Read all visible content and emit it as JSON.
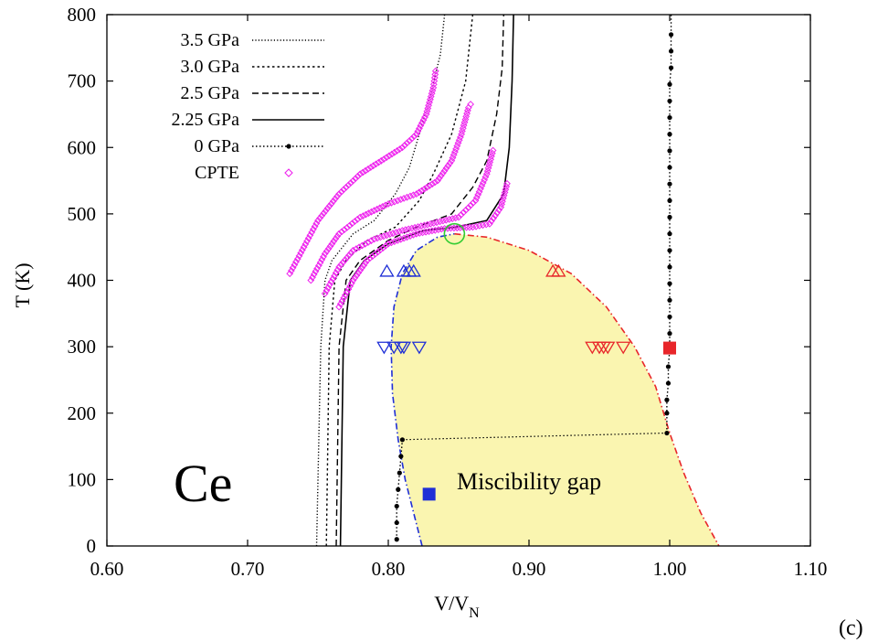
{
  "chart_data": {
    "type": "scatter",
    "element_label": "Ce",
    "panel_label": "(c)",
    "region_label": "Miscibility gap",
    "xlabel": "V/V",
    "xlabel_sub": "N",
    "ylabel": "T (K)",
    "xlim": [
      0.6,
      1.1
    ],
    "ylim": [
      0,
      800
    ],
    "xticks": [
      0.6,
      0.7,
      0.8,
      0.9,
      1.0,
      1.1
    ],
    "xtick_labels": [
      "0.60",
      "0.70",
      "0.80",
      "0.90",
      "1.00",
      "1.10"
    ],
    "yticks": [
      0,
      100,
      200,
      300,
      400,
      500,
      600,
      700,
      800
    ],
    "ytick_labels": [
      "0",
      "100",
      "200",
      "300",
      "400",
      "500",
      "600",
      "700",
      "800"
    ],
    "legend_position": "top-left",
    "colors": {
      "gap_fill": "#faf5b0",
      "blue": "#1f2fd6",
      "red": "#e8262a",
      "magenta": "#ee22ee",
      "green": "#33cc33",
      "black": "#000000"
    },
    "series": [
      {
        "name": "3.5 GPa",
        "style": "fine-dotted",
        "points": [
          [
            0.749,
            0
          ],
          [
            0.752,
            300
          ],
          [
            0.755,
            400
          ],
          [
            0.76,
            430
          ],
          [
            0.775,
            470
          ],
          [
            0.79,
            490
          ],
          [
            0.805,
            530
          ],
          [
            0.815,
            570
          ],
          [
            0.822,
            620
          ],
          [
            0.83,
            680
          ],
          [
            0.837,
            740
          ],
          [
            0.84,
            800
          ]
        ]
      },
      {
        "name": "3.0 GPa",
        "style": "dotted",
        "points": [
          [
            0.756,
            0
          ],
          [
            0.758,
            300
          ],
          [
            0.762,
            400
          ],
          [
            0.77,
            430
          ],
          [
            0.785,
            460
          ],
          [
            0.805,
            480
          ],
          [
            0.822,
            520
          ],
          [
            0.832,
            560
          ],
          [
            0.845,
            620
          ],
          [
            0.855,
            700
          ],
          [
            0.86,
            800
          ]
        ]
      },
      {
        "name": "2.5 GPa",
        "style": "dashed",
        "points": [
          [
            0.763,
            0
          ],
          [
            0.765,
            300
          ],
          [
            0.77,
            400
          ],
          [
            0.78,
            430
          ],
          [
            0.8,
            460
          ],
          [
            0.82,
            480
          ],
          [
            0.845,
            500
          ],
          [
            0.86,
            540
          ],
          [
            0.87,
            580
          ],
          [
            0.877,
            650
          ],
          [
            0.881,
            720
          ],
          [
            0.882,
            800
          ]
        ]
      },
      {
        "name": "2.25 GPa",
        "style": "solid",
        "points": [
          [
            0.766,
            0
          ],
          [
            0.768,
            300
          ],
          [
            0.773,
            400
          ],
          [
            0.783,
            430
          ],
          [
            0.8,
            455
          ],
          [
            0.825,
            475
          ],
          [
            0.848,
            480
          ],
          [
            0.87,
            490
          ],
          [
            0.882,
            530
          ],
          [
            0.886,
            600
          ],
          [
            0.888,
            700
          ],
          [
            0.889,
            800
          ]
        ]
      },
      {
        "name": "0 GPa",
        "style": "dotted-markers",
        "points": [
          [
            0.806,
            10
          ],
          [
            0.806,
            35
          ],
          [
            0.806,
            60
          ],
          [
            0.807,
            85
          ],
          [
            0.808,
            110
          ],
          [
            0.809,
            135
          ],
          [
            0.81,
            160
          ],
          [
            0.998,
            170
          ],
          [
            0.998,
            200
          ],
          [
            0.998,
            220
          ],
          [
            0.999,
            245
          ],
          [
            0.999,
            270
          ],
          [
            1.0,
            296
          ],
          [
            1.0,
            320
          ],
          [
            1.0,
            345
          ],
          [
            1.0,
            370
          ],
          [
            1.0,
            395
          ],
          [
            1.0,
            420
          ],
          [
            1.0,
            445
          ],
          [
            1.0,
            470
          ],
          [
            1.0,
            495
          ],
          [
            1.0,
            520
          ],
          [
            1.0,
            545
          ],
          [
            1.0,
            570
          ],
          [
            1.0,
            595
          ],
          [
            1.0,
            620
          ],
          [
            1.0,
            645
          ],
          [
            1.0,
            670
          ],
          [
            1.0,
            695
          ],
          [
            1.001,
            720
          ],
          [
            1.001,
            745
          ],
          [
            1.001,
            770
          ]
        ]
      },
      {
        "name": "CPTE",
        "style": "magenta-diamonds",
        "curves": [
          [
            [
              0.73,
              410
            ],
            [
              0.74,
              450
            ],
            [
              0.75,
              490
            ],
            [
              0.765,
              530
            ],
            [
              0.78,
              560
            ],
            [
              0.795,
              580
            ],
            [
              0.81,
              600
            ],
            [
              0.82,
              620
            ],
            [
              0.827,
              650
            ],
            [
              0.832,
              690
            ],
            [
              0.834,
              720
            ]
          ],
          [
            [
              0.745,
              400
            ],
            [
              0.755,
              440
            ],
            [
              0.765,
              470
            ],
            [
              0.78,
              495
            ],
            [
              0.8,
              515
            ],
            [
              0.82,
              530
            ],
            [
              0.835,
              550
            ],
            [
              0.845,
              580
            ],
            [
              0.852,
              620
            ],
            [
              0.857,
              660
            ],
            [
              0.86,
              670
            ]
          ],
          [
            [
              0.755,
              380
            ],
            [
              0.765,
              420
            ],
            [
              0.775,
              445
            ],
            [
              0.79,
              462
            ],
            [
              0.81,
              475
            ],
            [
              0.83,
              485
            ],
            [
              0.85,
              495
            ],
            [
              0.862,
              520
            ],
            [
              0.87,
              560
            ],
            [
              0.875,
              600
            ]
          ],
          [
            [
              0.765,
              360
            ],
            [
              0.775,
              400
            ],
            [
              0.785,
              430
            ],
            [
              0.8,
              455
            ],
            [
              0.82,
              470
            ],
            [
              0.84,
              478
            ],
            [
              0.86,
              480
            ],
            [
              0.872,
              485
            ],
            [
              0.88,
              510
            ],
            [
              0.885,
              550
            ]
          ]
        ]
      }
    ],
    "gap_boundary": {
      "left": [
        [
          0.824,
          0
        ],
        [
          0.818,
          50
        ],
        [
          0.812,
          100
        ],
        [
          0.807,
          160
        ],
        [
          0.803,
          230
        ],
        [
          0.802,
          300
        ],
        [
          0.804,
          360
        ],
        [
          0.81,
          410
        ],
        [
          0.82,
          445
        ],
        [
          0.835,
          465
        ],
        [
          0.847,
          470
        ]
      ],
      "right": [
        [
          0.847,
          470
        ],
        [
          0.87,
          465
        ],
        [
          0.9,
          445
        ],
        [
          0.93,
          410
        ],
        [
          0.955,
          360
        ],
        [
          0.975,
          300
        ],
        [
          0.99,
          240
        ],
        [
          1.0,
          170
        ],
        [
          1.01,
          110
        ],
        [
          1.022,
          50
        ],
        [
          1.035,
          0
        ]
      ]
    },
    "tie_line": [
      [
        0.81,
        160
      ],
      [
        0.998,
        170
      ]
    ],
    "critical_point": [
      0.847,
      470
    ],
    "blue_up_triangles": [
      [
        0.799,
        413
      ],
      [
        0.811,
        413
      ],
      [
        0.815,
        413
      ],
      [
        0.818,
        413
      ]
    ],
    "blue_down_triangles": [
      [
        0.797,
        300
      ],
      [
        0.804,
        300
      ],
      [
        0.809,
        300
      ],
      [
        0.811,
        300
      ],
      [
        0.822,
        300
      ]
    ],
    "red_up_triangles": [
      [
        0.917,
        413
      ],
      [
        0.921,
        413
      ]
    ],
    "red_down_triangles": [
      [
        0.945,
        300
      ],
      [
        0.95,
        300
      ],
      [
        0.953,
        300
      ],
      [
        0.956,
        300
      ],
      [
        0.967,
        300
      ]
    ],
    "blue_square": [
      0.829,
      78
    ],
    "red_square": [
      1.0,
      298
    ]
  }
}
